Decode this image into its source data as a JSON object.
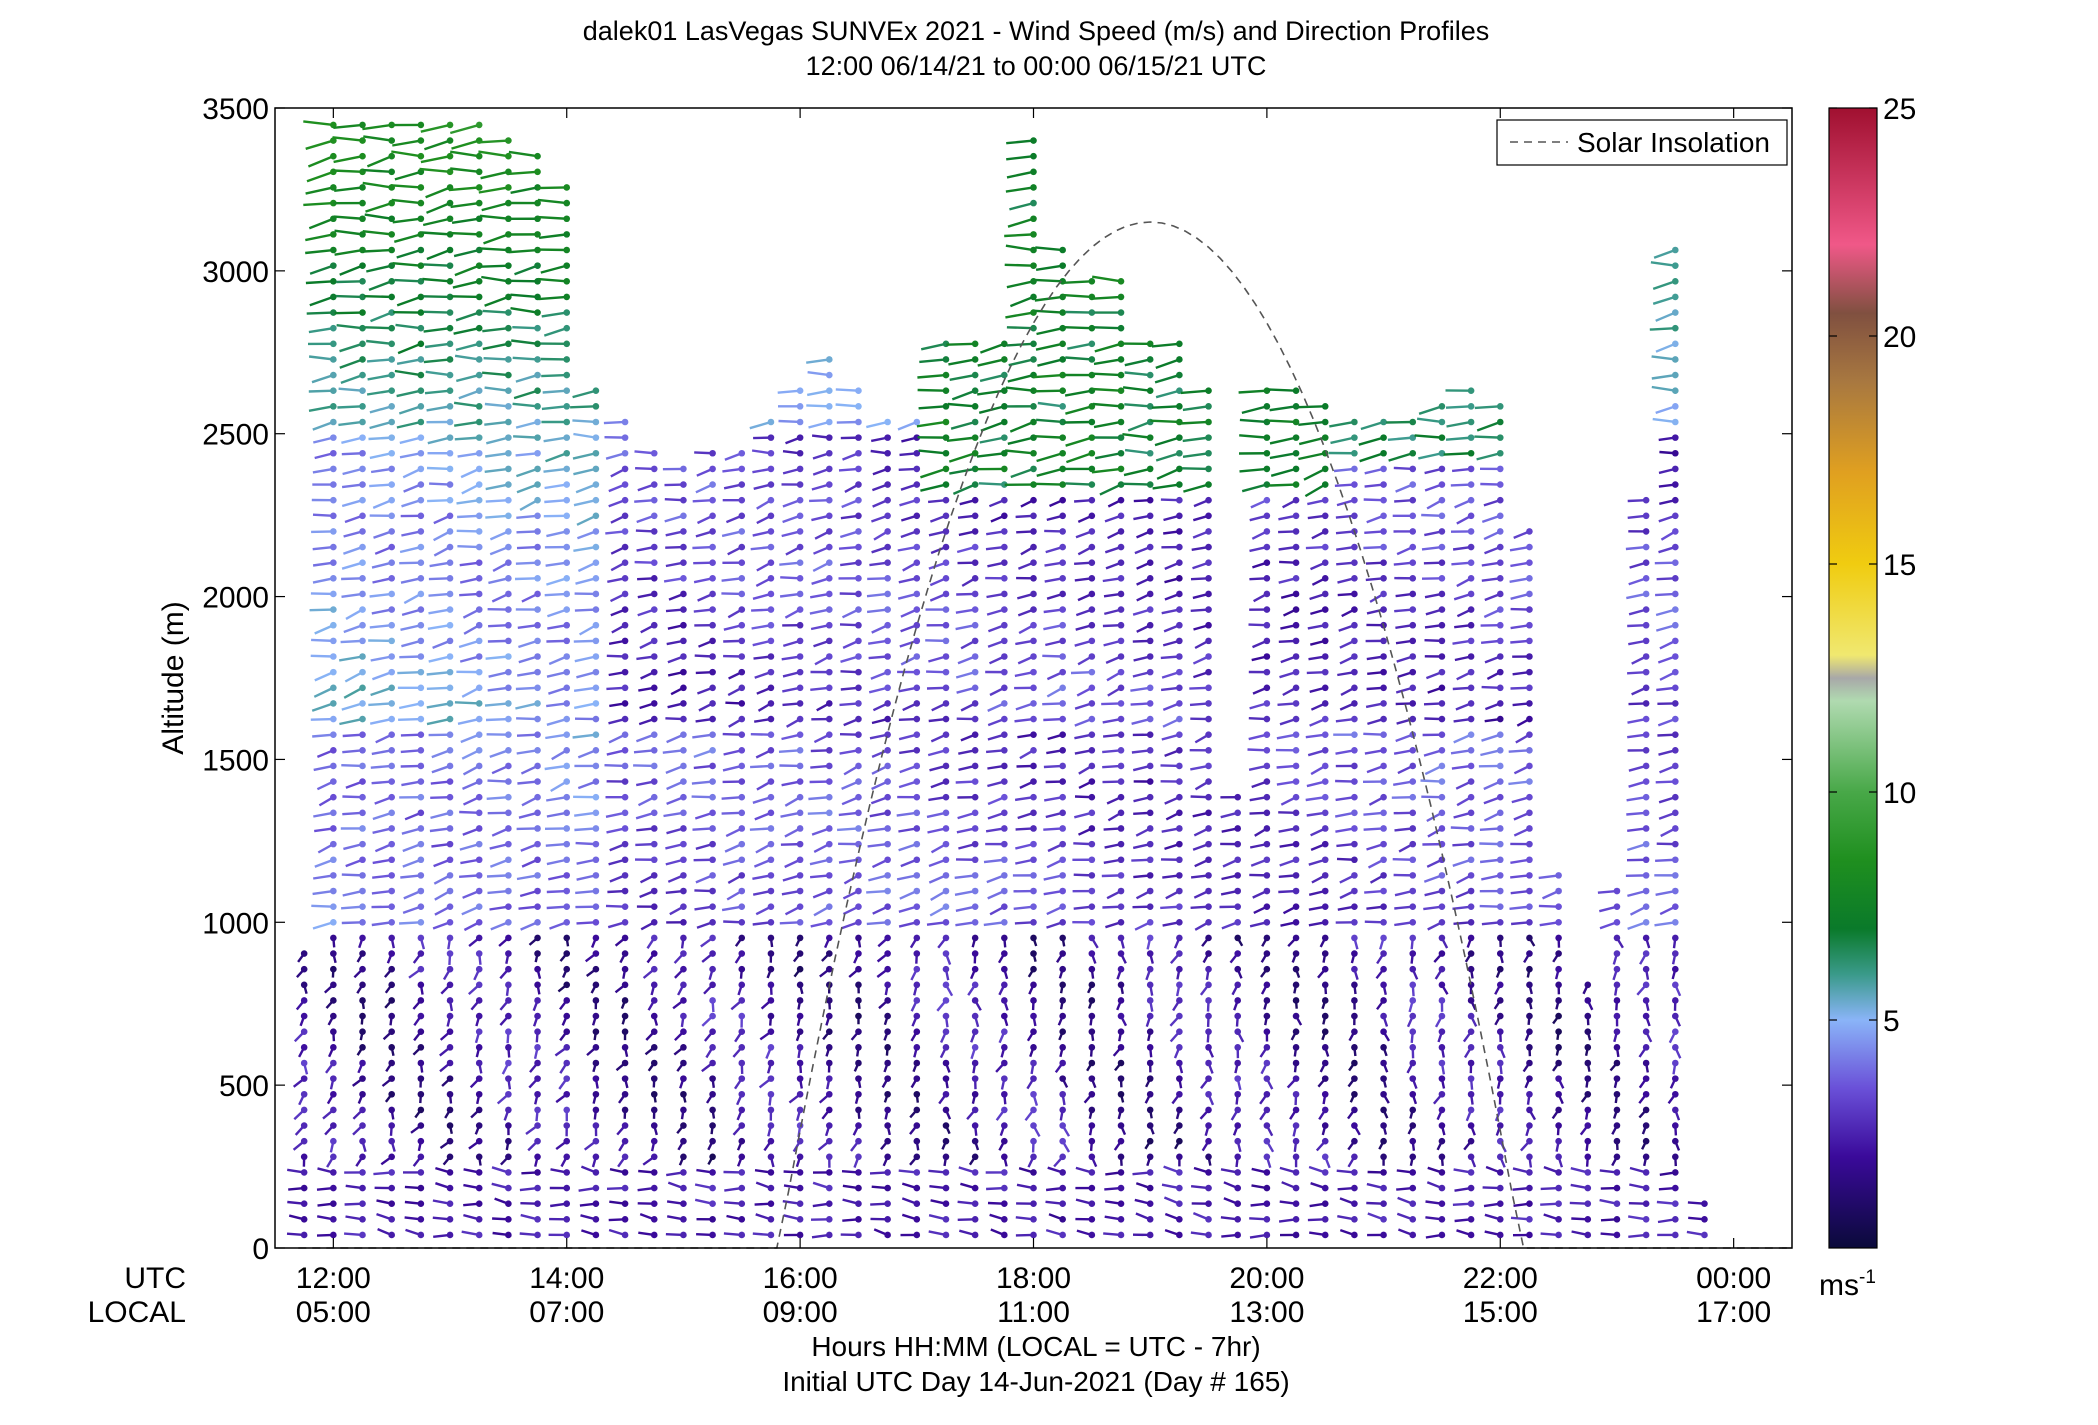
{
  "chart_data": {
    "type": "wind-barb profile",
    "title": "dalek01 LasVegas SUNVEx 2021 - Wind Speed (m/s) and Direction Profiles",
    "subtitle": "12:00 06/14/21 to 00:00 06/15/21  UTC",
    "ylabel": "Altitude (m)",
    "xlabel_line1": "Hours HH:MM  (LOCAL = UTC - 7hr)",
    "xlabel_line2": "Initial UTC Day 14-Jun-2021 (Day # 165)",
    "x_row_labels": [
      "UTC",
      "LOCAL"
    ],
    "x_range_hours_utc": [
      11.5,
      24.5
    ],
    "ylim": [
      0,
      3500
    ],
    "y_ticks": [
      0,
      500,
      1000,
      1500,
      2000,
      2500,
      3000,
      3500
    ],
    "x_ticks": [
      {
        "utc": "12:00",
        "local": "05:00",
        "hour": 12
      },
      {
        "utc": "14:00",
        "local": "07:00",
        "hour": 14
      },
      {
        "utc": "16:00",
        "local": "09:00",
        "hour": 16
      },
      {
        "utc": "18:00",
        "local": "11:00",
        "hour": 18
      },
      {
        "utc": "20:00",
        "local": "13:00",
        "hour": 20
      },
      {
        "utc": "22:00",
        "local": "15:00",
        "hour": 22
      },
      {
        "utc": "00:00",
        "local": "17:00",
        "hour": 24
      }
    ],
    "legend": {
      "label": "Solar Insolation",
      "placement": "top-right"
    },
    "colorbar": {
      "min": 0,
      "max": 25,
      "ticks": [
        5,
        10,
        15,
        20,
        25
      ],
      "unit_label": "ms",
      "unit_exponent": "-1",
      "stops": [
        {
          "v": 0,
          "color": "#0a0a3a"
        },
        {
          "v": 2,
          "color": "#3a0a9a"
        },
        {
          "v": 3.5,
          "color": "#6a50d8"
        },
        {
          "v": 5,
          "color": "#8ab4f8"
        },
        {
          "v": 6,
          "color": "#3a9a8a"
        },
        {
          "v": 7,
          "color": "#0a7a2a"
        },
        {
          "v": 8.5,
          "color": "#1f8f1f"
        },
        {
          "v": 10,
          "color": "#48a848"
        },
        {
          "v": 12,
          "color": "#b0dab0"
        },
        {
          "v": 12.5,
          "color": "#a8a8a8"
        },
        {
          "v": 13,
          "color": "#f0e870"
        },
        {
          "v": 15,
          "color": "#f0cc10"
        },
        {
          "v": 17,
          "color": "#e0a020"
        },
        {
          "v": 19,
          "color": "#a87840"
        },
        {
          "v": 20.5,
          "color": "#805040"
        },
        {
          "v": 22,
          "color": "#f05888"
        },
        {
          "v": 25,
          "color": "#a01030"
        }
      ]
    },
    "profile_columns": [
      {
        "t": 11.75,
        "top": 950
      },
      {
        "t": 12.0,
        "top": 3480
      },
      {
        "t": 12.25,
        "top": 3480
      },
      {
        "t": 12.5,
        "top": 3480
      },
      {
        "t": 12.75,
        "top": 3480
      },
      {
        "t": 13.0,
        "top": 3480
      },
      {
        "t": 13.25,
        "top": 3470
      },
      {
        "t": 13.5,
        "top": 3400
      },
      {
        "t": 13.75,
        "top": 3380
      },
      {
        "t": 14.0,
        "top": 3270
      },
      {
        "t": 14.25,
        "top": 2650
      },
      {
        "t": 14.5,
        "top": 2550
      },
      {
        "t": 14.75,
        "top": 2480
      },
      {
        "t": 15.0,
        "top": 2400
      },
      {
        "t": 15.25,
        "top": 2480
      },
      {
        "t": 15.5,
        "top": 2450
      },
      {
        "t": 15.75,
        "top": 2550
      },
      {
        "t": 16.0,
        "top": 2650
      },
      {
        "t": 16.25,
        "top": 2750
      },
      {
        "t": 16.5,
        "top": 2650
      },
      {
        "t": 16.75,
        "top": 2560
      },
      {
        "t": 17.0,
        "top": 2560
      },
      {
        "t": 17.25,
        "top": 2780
      },
      {
        "t": 17.5,
        "top": 2780
      },
      {
        "t": 17.75,
        "top": 2780
      },
      {
        "t": 18.0,
        "top": 3430
      },
      {
        "t": 18.25,
        "top": 3080
      },
      {
        "t": 18.5,
        "top": 2980
      },
      {
        "t": 18.75,
        "top": 2980
      },
      {
        "t": 19.0,
        "top": 2780
      },
      {
        "t": 19.25,
        "top": 2780
      },
      {
        "t": 19.5,
        "top": 2650
      },
      {
        "t": 19.75,
        "top": 1400
      },
      {
        "t": 20.0,
        "top": 2650
      },
      {
        "t": 20.25,
        "top": 2650
      },
      {
        "t": 20.5,
        "top": 2600
      },
      {
        "t": 20.75,
        "top": 2550
      },
      {
        "t": 21.0,
        "top": 2550
      },
      {
        "t": 21.25,
        "top": 2550
      },
      {
        "t": 21.5,
        "top": 2600
      },
      {
        "t": 21.75,
        "top": 2650
      },
      {
        "t": 22.0,
        "top": 2630
      },
      {
        "t": 22.25,
        "top": 2220
      },
      {
        "t": 22.5,
        "top": 1150
      },
      {
        "t": 22.75,
        "top": 850
      },
      {
        "t": 23.0,
        "top": 1100
      },
      {
        "t": 23.25,
        "top": 2300
      },
      {
        "t": 23.5,
        "top": 3080
      },
      {
        "t": 23.75,
        "top": 150
      }
    ]
  }
}
